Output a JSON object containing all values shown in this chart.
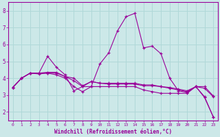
{
  "background_color": "#cce8e8",
  "line_color": "#990099",
  "grid_color": "#aacccc",
  "xlabel": "Windchill (Refroidissement éolien,°C)",
  "xlim": [
    -0.5,
    23.5
  ],
  "ylim": [
    1.5,
    8.5
  ],
  "yticks": [
    2,
    3,
    4,
    5,
    6,
    7,
    8
  ],
  "xticks": [
    0,
    1,
    2,
    3,
    4,
    5,
    6,
    7,
    8,
    9,
    10,
    11,
    12,
    13,
    14,
    15,
    16,
    17,
    18,
    19,
    20,
    21,
    22,
    23
  ],
  "series": [
    [
      3.45,
      4.0,
      4.3,
      4.3,
      4.35,
      4.35,
      4.1,
      4.0,
      3.55,
      3.8,
      3.7,
      3.65,
      3.65,
      3.65,
      3.65,
      3.55,
      3.55,
      3.5,
      3.45,
      3.35,
      3.25,
      3.5,
      3.5,
      2.95
    ],
    [
      3.45,
      4.0,
      4.3,
      4.3,
      5.3,
      4.65,
      4.2,
      3.25,
      3.5,
      3.5,
      4.85,
      5.5,
      6.8,
      7.65,
      7.85,
      5.8,
      5.9,
      5.45,
      4.0,
      3.25,
      3.15,
      3.5,
      2.9,
      1.7
    ],
    [
      3.45,
      4.0,
      4.3,
      4.25,
      4.3,
      4.3,
      4.1,
      3.85,
      3.5,
      3.8,
      3.7,
      3.7,
      3.7,
      3.7,
      3.7,
      3.6,
      3.6,
      3.5,
      3.4,
      3.3,
      3.2,
      3.5,
      3.4,
      2.9
    ],
    [
      3.45,
      4.0,
      4.3,
      4.3,
      4.3,
      4.2,
      4.0,
      3.5,
      3.2,
      3.5,
      3.5,
      3.5,
      3.5,
      3.5,
      3.5,
      3.3,
      3.2,
      3.1,
      3.1,
      3.1,
      3.1,
      3.5,
      2.85,
      1.7
    ]
  ]
}
